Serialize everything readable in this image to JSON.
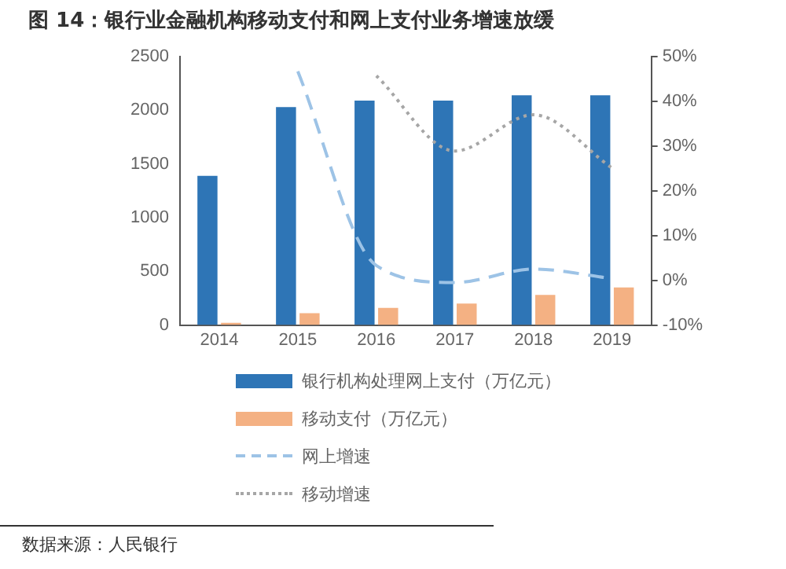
{
  "chart_data": {
    "type": "bar",
    "title": "图 14：银行业金融机构移动支付和网上支付业务增速放缓",
    "categories": [
      "2014",
      "2015",
      "2016",
      "2017",
      "2018",
      "2019"
    ],
    "series": [
      {
        "name": "银行机构处理网上支付（万亿元）",
        "color": "#2e75b6",
        "values": [
          1390,
          2030,
          2090,
          2090,
          2140,
          2140
        ]
      },
      {
        "name": "移动支付（万亿元）",
        "color": "#f4b183",
        "values": [
          20,
          110,
          160,
          200,
          280,
          350
        ]
      },
      {
        "name": "网上增速",
        "type": "line",
        "axis": "y2",
        "line_style": "dashed",
        "color": "#9dc3e6",
        "values": [
          null,
          46.7,
          3.3,
          -0.5,
          2.5,
          0.4
        ]
      },
      {
        "name": "移动增速",
        "type": "line",
        "axis": "y2",
        "line_style": "dotted",
        "color": "#a6a6a6",
        "values": [
          null,
          null,
          45.7,
          28.9,
          37.0,
          25.1
        ]
      }
    ],
    "ylim": [
      0,
      2500
    ],
    "yticks": [
      0,
      500,
      1000,
      1500,
      2000,
      2500
    ],
    "y2lim": [
      -10,
      50
    ],
    "y2ticks": [
      {
        "value": -10,
        "label": "-10%"
      },
      {
        "value": 0,
        "label": "0%"
      },
      {
        "value": 10,
        "label": "10%"
      },
      {
        "value": 20,
        "label": "20%"
      },
      {
        "value": 30,
        "label": "30%"
      },
      {
        "value": 40,
        "label": "40%"
      },
      {
        "value": 50,
        "label": "50%"
      }
    ],
    "legend": "bottom",
    "grid": false,
    "marker": "none",
    "annotations": [
      "数据来源：人民银行"
    ]
  }
}
